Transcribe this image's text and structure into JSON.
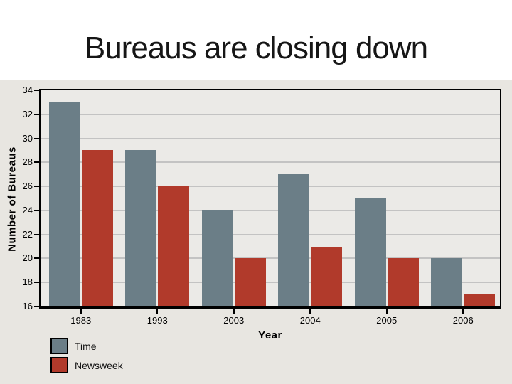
{
  "title": "Bureaus are closing down",
  "chart_data": {
    "type": "bar",
    "categories": [
      "1983",
      "1993",
      "2003",
      "2004",
      "2005",
      "2006"
    ],
    "series": [
      {
        "name": "Time",
        "color": "#6b7e87",
        "values": [
          33,
          29,
          24,
          27,
          25,
          20
        ]
      },
      {
        "name": "Newsweek",
        "color": "#b13a2b",
        "values": [
          29,
          26,
          20,
          21,
          20,
          17
        ]
      }
    ],
    "xlabel": "Year",
    "ylabel": "Number of Bureaus",
    "ylim": [
      16,
      34
    ],
    "yticks": [
      16,
      18,
      20,
      22,
      24,
      26,
      28,
      30,
      32,
      34
    ],
    "grid": true,
    "legend_position": "bottom-left",
    "colors": {
      "band_bg": "#e8e6e1",
      "plot_bg": "#ebeae7",
      "gridline": "#c3c3c3",
      "axis": "#000000",
      "title_text": "#161616"
    }
  }
}
